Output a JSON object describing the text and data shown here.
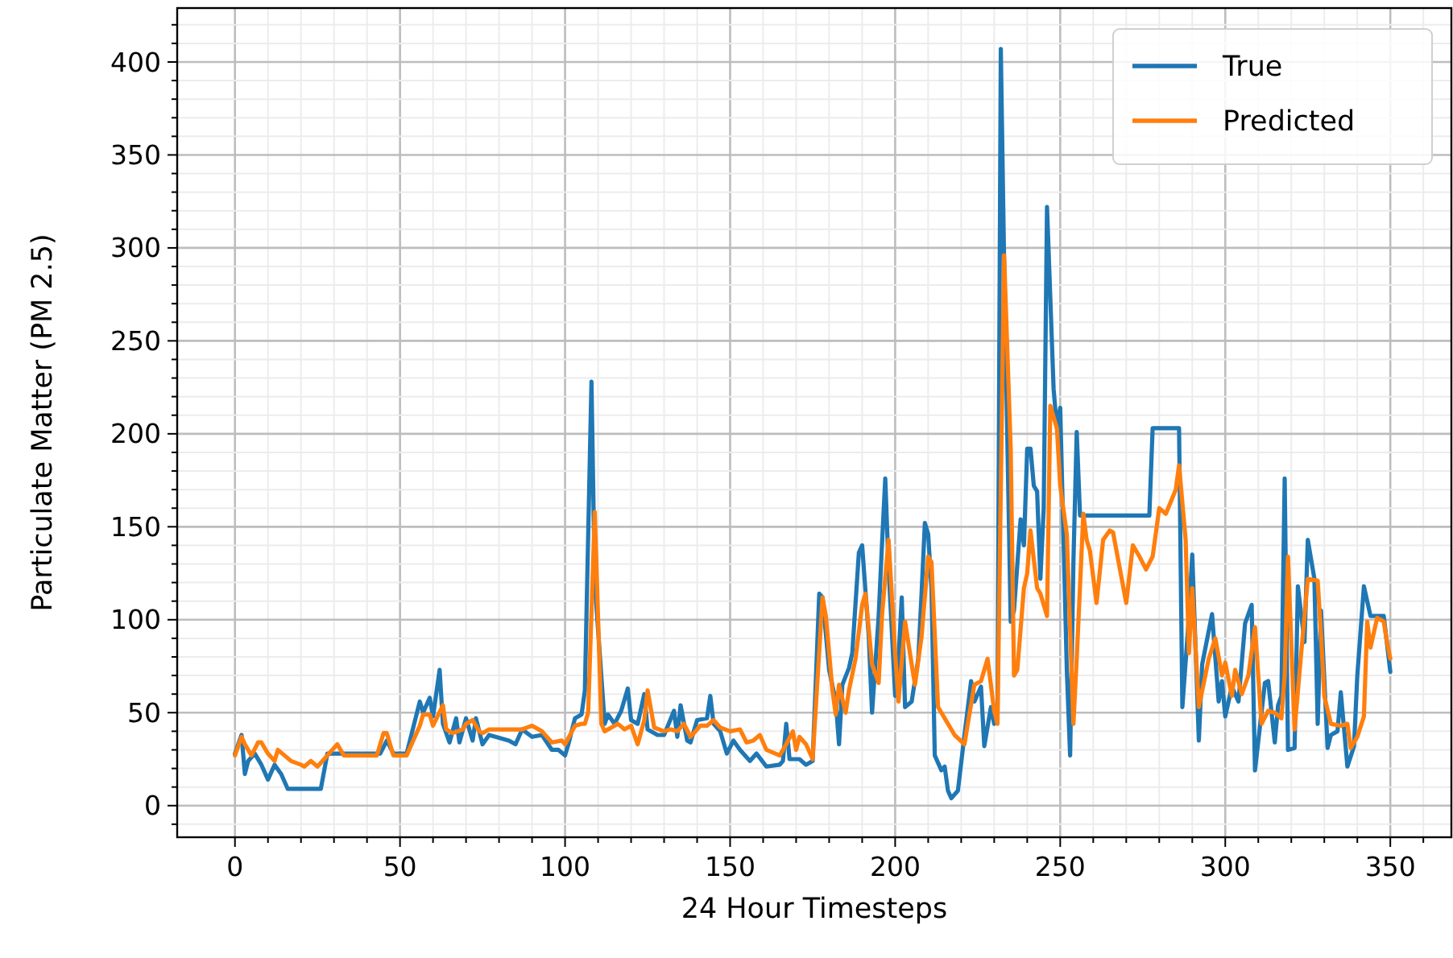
{
  "chart_data": {
    "type": "line",
    "xlabel": "24 Hour Timesteps",
    "ylabel": "Particulate Matter (PM 2.5)",
    "xlim": [
      -17.5,
      368.5
    ],
    "ylim": [
      -17,
      429
    ],
    "xticks": [
      0,
      {
        "value": 10,
        "label": null
      },
      {
        "value": 20,
        "label": null
      },
      {
        "value": 30,
        "label": null
      },
      {
        "value": 40,
        "label": null
      },
      50,
      {
        "value": 60,
        "label": null
      },
      {
        "value": 70,
        "label": null
      },
      {
        "value": 80,
        "label": null
      },
      {
        "value": 90,
        "label": null
      },
      100,
      {
        "value": 110,
        "label": null
      },
      {
        "value": 120,
        "label": null
      },
      {
        "value": 130,
        "label": null
      },
      {
        "value": 140,
        "label": null
      },
      150,
      {
        "value": 160,
        "label": null
      },
      {
        "value": 170,
        "label": null
      },
      {
        "value": 180,
        "label": null
      },
      {
        "value": 190,
        "label": null
      },
      200,
      {
        "value": 210,
        "label": null
      },
      {
        "value": 220,
        "label": null
      },
      {
        "value": 230,
        "label": null
      },
      {
        "value": 240,
        "label": null
      },
      250,
      {
        "value": 260,
        "label": null
      },
      {
        "value": 270,
        "label": null
      },
      {
        "value": 280,
        "label": null
      },
      {
        "value": 290,
        "label": null
      },
      300,
      {
        "value": 310,
        "label": null
      },
      {
        "value": 320,
        "label": null
      },
      {
        "value": 330,
        "label": null
      },
      {
        "value": 340,
        "label": null
      },
      350,
      {
        "value": 360,
        "label": null
      }
    ],
    "yticks": [
      {
        "value": -10,
        "label": null
      },
      0,
      {
        "value": 10,
        "label": null
      },
      {
        "value": 20,
        "label": null
      },
      {
        "value": 30,
        "label": null
      },
      {
        "value": 40,
        "label": null
      },
      50,
      {
        "value": 60,
        "label": null
      },
      {
        "value": 70,
        "label": null
      },
      {
        "value": 80,
        "label": null
      },
      {
        "value": 90,
        "label": null
      },
      100,
      {
        "value": 110,
        "label": null
      },
      {
        "value": 120,
        "label": null
      },
      {
        "value": 130,
        "label": null
      },
      {
        "value": 140,
        "label": null
      },
      150,
      {
        "value": 160,
        "label": null
      },
      {
        "value": 170,
        "label": null
      },
      {
        "value": 180,
        "label": null
      },
      {
        "value": 190,
        "label": null
      },
      200,
      {
        "value": 210,
        "label": null
      },
      {
        "value": 220,
        "label": null
      },
      {
        "value": 230,
        "label": null
      },
      {
        "value": 240,
        "label": null
      },
      250,
      {
        "value": 260,
        "label": null
      },
      {
        "value": 270,
        "label": null
      },
      {
        "value": 280,
        "label": null
      },
      {
        "value": 290,
        "label": null
      },
      300,
      {
        "value": 310,
        "label": null
      },
      {
        "value": 320,
        "label": null
      },
      {
        "value": 330,
        "label": null
      },
      {
        "value": 340,
        "label": null
      },
      350,
      {
        "value": 360,
        "label": null
      },
      {
        "value": 370,
        "label": null
      },
      {
        "value": 380,
        "label": null
      },
      {
        "value": 390,
        "label": null
      },
      400,
      {
        "value": 410,
        "label": null
      },
      {
        "value": 420,
        "label": null
      }
    ],
    "grid": true,
    "legend": "top right",
    "marker": "none",
    "line_style": "solid",
    "series": [
      {
        "name": "True",
        "color": "#1f77b4",
        "x": [
          0,
          2,
          3,
          4,
          6,
          8,
          10,
          12,
          14,
          16,
          26,
          28,
          31,
          44,
          46,
          48,
          52,
          56,
          57,
          59,
          60,
          62,
          63,
          65,
          67,
          68,
          70,
          72,
          73,
          75,
          77,
          83,
          85,
          87,
          90,
          93,
          96,
          98,
          100,
          101,
          103,
          105,
          106,
          108,
          109,
          112,
          113,
          115,
          117,
          119,
          120,
          122,
          124,
          125,
          128,
          130,
          133,
          134,
          135,
          137,
          138,
          140,
          143,
          144,
          145,
          147,
          149,
          151,
          153,
          156,
          158,
          161,
          165,
          166,
          167,
          168,
          171,
          173,
          175,
          177,
          178,
          180,
          182,
          183,
          184,
          186,
          187,
          189,
          190,
          192,
          193,
          195,
          196,
          197,
          198,
          200,
          201,
          202,
          203,
          205,
          207,
          208,
          209,
          210,
          211,
          212,
          214,
          215,
          216,
          217,
          219,
          221,
          223,
          224,
          226,
          227,
          229,
          230,
          231,
          232,
          233,
          235,
          236,
          238,
          239,
          240,
          241,
          242,
          243,
          244,
          245,
          246,
          248,
          249,
          250,
          252,
          253,
          254,
          255,
          256,
          277,
          278,
          286,
          287,
          289,
          290,
          292,
          293,
          296,
          298,
          299,
          300,
          302,
          304,
          306,
          308,
          309,
          312,
          313,
          315,
          316,
          317,
          318,
          319,
          321,
          322,
          324,
          325,
          327,
          328,
          329,
          331,
          332,
          334,
          335,
          337,
          339,
          340,
          342,
          344,
          348,
          350
        ],
        "values": [
          28,
          38,
          17,
          24,
          28,
          22,
          14,
          22,
          17,
          9,
          9,
          28,
          28,
          28,
          35,
          28,
          28,
          56,
          50,
          58,
          48,
          73,
          44,
          34,
          47,
          34,
          47,
          35,
          47,
          33,
          38,
          35,
          33,
          41,
          37,
          38,
          30,
          30,
          27,
          33,
          47,
          49,
          62,
          228,
          120,
          44,
          49,
          44,
          51,
          63,
          46,
          44,
          60,
          41,
          38,
          38,
          51,
          37,
          54,
          35,
          34,
          46,
          47,
          59,
          44,
          40,
          28,
          35,
          30,
          24,
          28,
          21,
          22,
          24,
          44,
          25,
          25,
          22,
          24,
          114,
          112,
          73,
          56,
          33,
          65,
          74,
          82,
          136,
          140,
          91,
          50,
          102,
          140,
          176,
          128,
          59,
          79,
          112,
          53,
          56,
          79,
          114,
          152,
          146,
          117,
          27,
          19,
          21,
          8,
          4,
          8,
          38,
          67,
          56,
          64,
          32,
          53,
          44,
          50,
          407,
          293,
          99,
          105,
          154,
          140,
          192,
          192,
          172,
          169,
          122,
          160,
          322,
          224,
          203,
          214,
          73,
          27,
          131,
          201,
          156,
          156,
          203,
          203,
          53,
          102,
          135,
          35,
          76,
          103,
          56,
          67,
          48,
          64,
          56,
          98,
          108,
          19,
          66,
          67,
          34,
          54,
          59,
          176,
          30,
          31,
          118,
          88,
          143,
          122,
          44,
          105,
          31,
          38,
          40,
          61,
          21,
          32,
          70,
          118,
          102,
          102,
          72
        ]
      },
      {
        "name": "Predicted",
        "color": "#ff7f0e",
        "x": [
          0,
          2,
          3,
          5,
          7,
          8,
          10,
          12,
          13,
          15,
          17,
          20,
          21,
          23,
          25,
          27,
          31,
          33,
          43,
          45,
          46,
          48,
          52,
          56,
          57,
          59,
          60,
          63,
          64,
          66,
          69,
          70,
          72,
          74,
          75,
          77,
          83,
          87,
          90,
          93,
          96,
          99,
          100,
          103,
          105,
          106,
          107,
          109,
          111,
          112,
          116,
          118,
          120,
          122,
          124,
          125,
          127,
          130,
          132,
          134,
          136,
          138,
          141,
          143,
          145,
          147,
          150,
          153,
          155,
          157,
          159,
          161,
          165,
          167,
          169,
          170,
          171,
          173,
          175,
          178,
          179,
          181,
          182,
          183,
          185,
          186,
          188,
          190,
          191,
          193,
          195,
          196,
          198,
          200,
          201,
          203,
          205,
          206,
          208,
          210,
          211,
          213,
          216,
          218,
          221,
          222,
          224,
          226,
          228,
          230,
          231,
          233,
          235,
          236,
          237,
          239,
          240,
          241,
          243,
          244,
          246,
          247,
          249,
          250,
          252,
          254,
          255,
          257,
          258,
          259,
          261,
          263,
          265,
          266,
          270,
          272,
          274,
          276,
          278,
          280,
          282,
          285,
          286,
          288,
          289,
          290,
          292,
          295,
          297,
          299,
          300,
          302,
          303,
          305,
          307,
          309,
          311,
          313,
          315,
          317,
          318,
          319,
          321,
          323,
          325,
          328,
          329,
          330,
          332,
          335,
          337,
          338,
          340,
          342,
          343,
          344,
          346,
          348,
          349,
          350
        ],
        "values": [
          27,
          37,
          33,
          27,
          34,
          34,
          28,
          24,
          30,
          27,
          24,
          22,
          21,
          24,
          21,
          25,
          33,
          27,
          27,
          39,
          39,
          27,
          27,
          43,
          49,
          49,
          43,
          54,
          41,
          39,
          41,
          44,
          46,
          40,
          39,
          41,
          41,
          41,
          43,
          40,
          34,
          35,
          33,
          43,
          44,
          44,
          50,
          158,
          44,
          40,
          44,
          41,
          43,
          33,
          46,
          62,
          42,
          40,
          41,
          40,
          44,
          37,
          43,
          43,
          46,
          42,
          40,
          41,
          34,
          35,
          38,
          30,
          27,
          33,
          40,
          30,
          37,
          33,
          25,
          112,
          102,
          62,
          49,
          65,
          50,
          62,
          79,
          108,
          114,
          76,
          66,
          102,
          143,
          82,
          56,
          99,
          76,
          65,
          91,
          134,
          131,
          53,
          44,
          38,
          33,
          44,
          65,
          67,
          79,
          51,
          44,
          296,
          192,
          70,
          73,
          117,
          125,
          148,
          117,
          114,
          102,
          215,
          203,
          172,
          146,
          44,
          79,
          157,
          143,
          137,
          109,
          143,
          148,
          147,
          109,
          140,
          134,
          127,
          134,
          160,
          157,
          170,
          183,
          143,
          82,
          117,
          53,
          79,
          90,
          70,
          77,
          59,
          73,
          60,
          70,
          96,
          44,
          51,
          50,
          47,
          70,
          134,
          41,
          82,
          122,
          121,
          92,
          59,
          44,
          43,
          44,
          31,
          37,
          48,
          99,
          85,
          101,
          99,
          88,
          79
        ]
      }
    ]
  }
}
